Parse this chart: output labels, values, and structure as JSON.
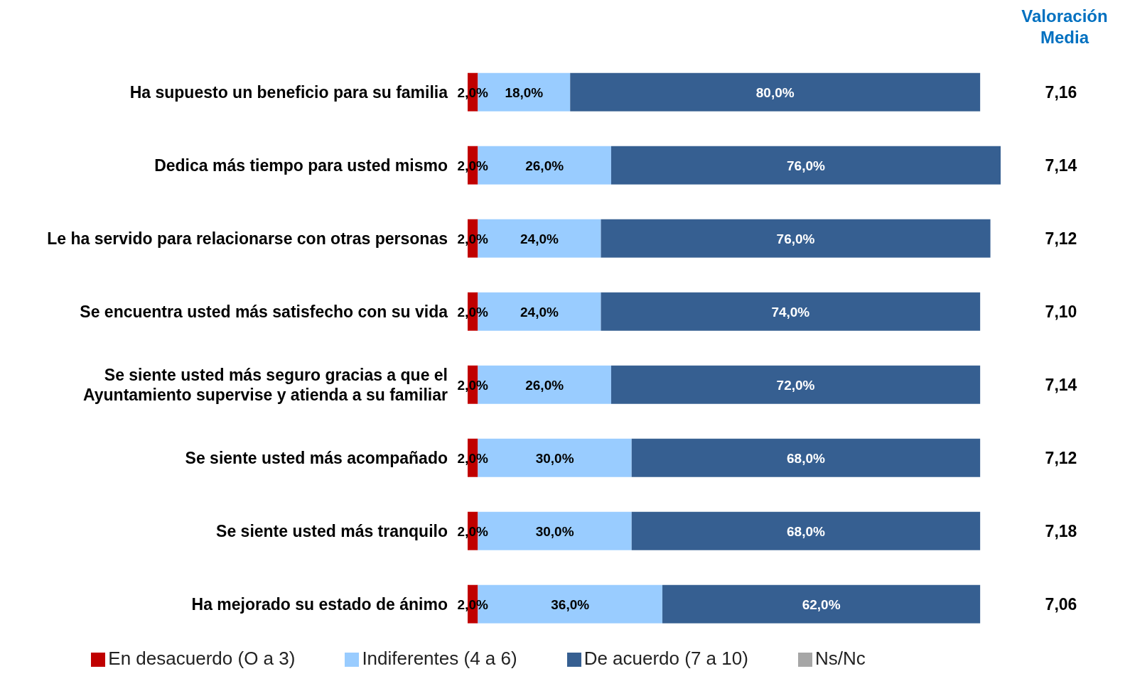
{
  "chart_data": {
    "type": "bar",
    "orientation": "horizontal",
    "stacked": true,
    "legend": "bottom",
    "grid": false,
    "categories": [
      "Ha supuesto un beneficio para su familia",
      "Dedica más tiempo para usted mismo",
      "Le ha servido para relacionarse con otras personas",
      "Se encuentra usted más satisfecho con su vida",
      "Se siente usted más seguro gracias a que el Ayuntamiento supervise y atienda a su familiar",
      "Se siente usted más acompañado",
      "Se siente usted más tranquilo",
      "Ha mejorado su estado de ánimo"
    ],
    "series": [
      {
        "name": "En desacuerdo (O a 3)",
        "color": "#c00000",
        "values": [
          2,
          2,
          2,
          2,
          2,
          2,
          2,
          2
        ],
        "value_labels": [
          "2,0%",
          "2,0%",
          "2,0%",
          "2,0%",
          "2,0%",
          "2,0%",
          "2,0%",
          "2,0%"
        ]
      },
      {
        "name": "Indiferentes (4 a 6)",
        "color": "#99ccff",
        "values": [
          18,
          26,
          24,
          24,
          26,
          30,
          30,
          36
        ],
        "value_labels": [
          "18,0%",
          "26,0%",
          "24,0%",
          "24,0%",
          "26,0%",
          "30,0%",
          "30,0%",
          "36,0%"
        ]
      },
      {
        "name": "De acuerdo (7 a 10)",
        "color": "#365f91",
        "values": [
          80,
          76,
          76,
          74,
          72,
          68,
          68,
          62
        ],
        "value_labels": [
          "80,0%",
          "76,0%",
          "76,0%",
          "74,0%",
          "72,0%",
          "68,0%",
          "68,0%",
          "62,0%"
        ]
      },
      {
        "name": "Ns/Nc",
        "color": "#a6a6a6",
        "values": [
          null,
          null,
          null,
          null,
          null,
          null,
          null,
          null
        ]
      }
    ],
    "annotations": [
      "Valoración Media",
      "7,16",
      "7,14",
      "7,12",
      "7,10",
      "7,14",
      "7,12",
      "7,18",
      "7,06"
    ]
  }
}
